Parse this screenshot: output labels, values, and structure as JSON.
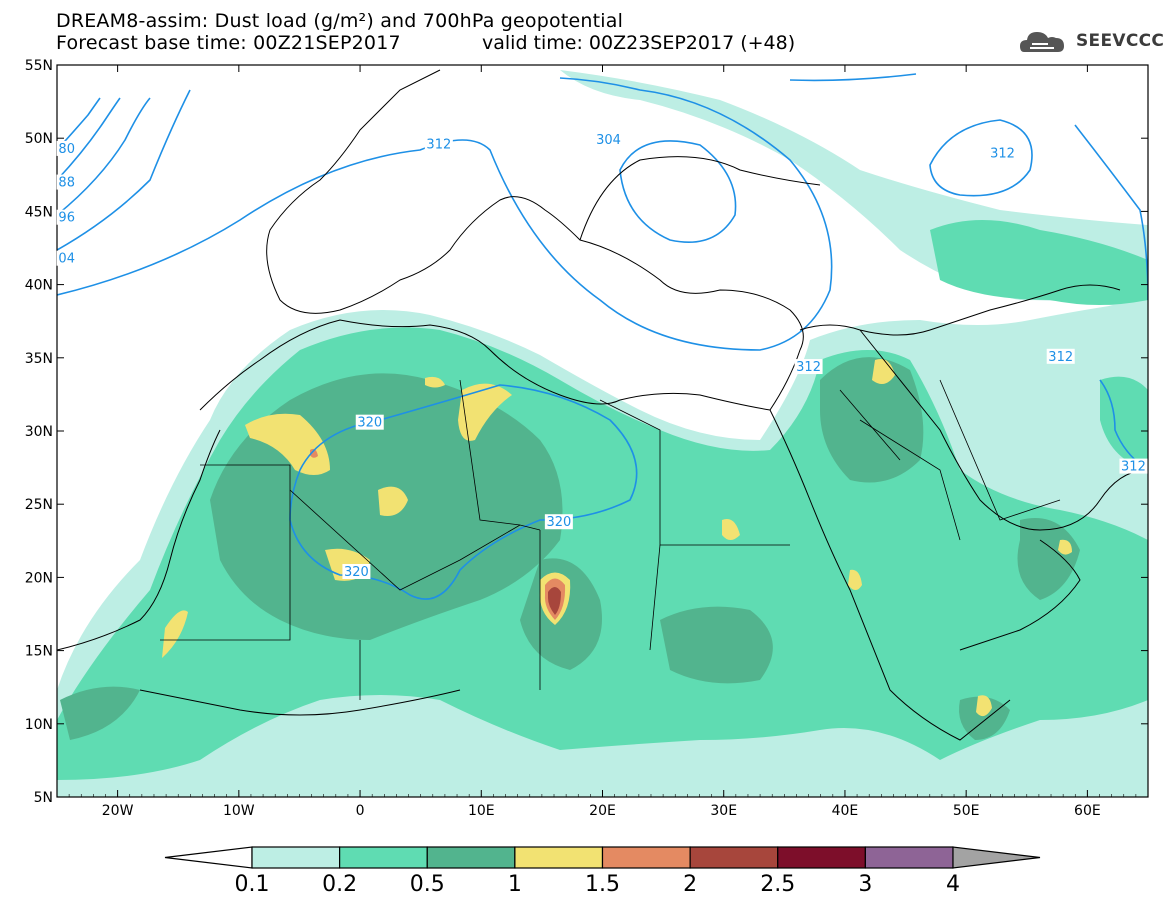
{
  "header": {
    "title_line1": "DREAM8-assim: Dust load (g/m²) and 700hPa geopotential",
    "forecast_base": "Forecast base time: 00Z21SEP2017",
    "valid_time": "valid time: 00Z23SEP2017 (+48)"
  },
  "logo": {
    "text": "SEEVCCC",
    "icon": "cloud-logo-icon"
  },
  "map": {
    "projection": "lat-lon",
    "lon_range": [
      -25,
      65
    ],
    "lat_range": [
      5,
      55
    ],
    "lat_labels": [
      "55N",
      "50N",
      "45N",
      "40N",
      "35N",
      "30N",
      "25N",
      "20N",
      "15N",
      "10N",
      "5N"
    ],
    "lon_labels": [
      "20W",
      "10W",
      "0",
      "10E",
      "20E",
      "30E",
      "40E",
      "50E",
      "60E"
    ],
    "contour_labels": [
      "80",
      "88",
      "96",
      "04",
      "312",
      "304",
      "312",
      "320",
      "312",
      "312",
      "320",
      "320",
      "312"
    ],
    "contour_color": "#1e90e6",
    "region_description_note": ""
  },
  "colorbar": {
    "levels": [
      "0.1",
      "0.2",
      "0.5",
      "1",
      "1.5",
      "2",
      "2.5",
      "3",
      "4"
    ],
    "colors": [
      "#ffffff",
      "#bdeee4",
      "#5fdcb2",
      "#52b48e",
      "#f2e272",
      "#e48a62",
      "#a7463c",
      "#7d0e2a",
      "#8e6496",
      "#a3a3a3"
    ]
  }
}
